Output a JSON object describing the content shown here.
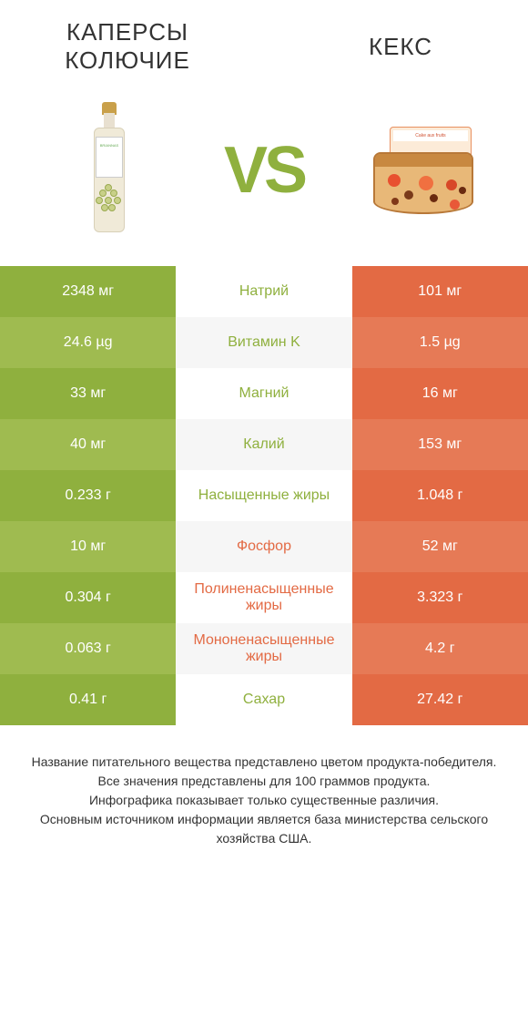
{
  "header": {
    "left_title": "КАПЕРСЫ КОЛЮЧИЕ",
    "right_title": "КЕКС"
  },
  "vs": "VS",
  "colors": {
    "green_dark": "#8fb03e",
    "green_light": "#9fbb50",
    "orange_dark": "#e36a44",
    "orange_light": "#e67a56",
    "mid_bg_even": "#ffffff",
    "mid_bg_odd": "#f6f6f6",
    "mid_text_green": "#8fb03e",
    "mid_text_orange": "#e36a44"
  },
  "rows": [
    {
      "left": "2348 мг",
      "mid": "Натрий",
      "right": "101 мг",
      "winner": "left"
    },
    {
      "left": "24.6 µg",
      "mid": "Витамин K",
      "right": "1.5 µg",
      "winner": "left"
    },
    {
      "left": "33 мг",
      "mid": "Магний",
      "right": "16 мг",
      "winner": "left"
    },
    {
      "left": "40 мг",
      "mid": "Калий",
      "right": "153 мг",
      "winner": "left"
    },
    {
      "left": "0.233 г",
      "mid": "Насыщенные жиры",
      "right": "1.048 г",
      "winner": "left"
    },
    {
      "left": "10 мг",
      "mid": "Фосфор",
      "right": "52 мг",
      "winner": "right"
    },
    {
      "left": "0.304 г",
      "mid": "Полиненасыщенные жиры",
      "right": "3.323 г",
      "winner": "right"
    },
    {
      "left": "0.063 г",
      "mid": "Мононенасыщенные жиры",
      "right": "4.2 г",
      "winner": "right"
    },
    {
      "left": "0.41 г",
      "mid": "Сахар",
      "right": "27.42 г",
      "winner": "left"
    }
  ],
  "footer": {
    "line1": "Название питательного вещества представлено цветом продукта-победителя.",
    "line2": "Все значения представлены для 100 граммов продукта.",
    "line3": "Инфографика показывает только существенные различия.",
    "line4": "Основным источником информации является база министерства сельского хозяйства США."
  }
}
